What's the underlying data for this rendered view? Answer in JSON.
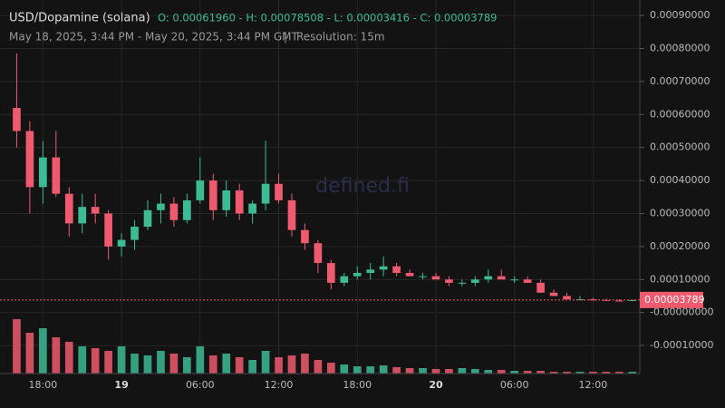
{
  "chart_data": {
    "type": "candlestick",
    "title": "USD/Dopamine (solana)",
    "ohlc_summary": "O: 0.00061960 - H: 0.00078508 - L: 0.00003416 - C: 0.00003789",
    "subtitle": "May 18, 2025, 3:44 PM - May 20, 2025, 3:44 PM GMT",
    "separator": "|",
    "resolution": "Resolution: 15m",
    "watermark": "defined.fi",
    "last_price": 3.789e-05,
    "up_color": "#3dbb94",
    "down_color": "#ef5a6f",
    "x": [
      16,
      17,
      18,
      19,
      20,
      21,
      22,
      23,
      24,
      25,
      26,
      27,
      28,
      29,
      30,
      31,
      32,
      33,
      34,
      35,
      36,
      37,
      38,
      39,
      40,
      41,
      42,
      43,
      44,
      45,
      46,
      47,
      48,
      49,
      50,
      51,
      52,
      53,
      54,
      55,
      56,
      57,
      58,
      59,
      60,
      61,
      62,
      63
    ],
    "open": [
      0.00062,
      0.00055,
      0.00038,
      0.00047,
      0.00036,
      0.00027,
      0.00032,
      0.0003,
      0.0002,
      0.00022,
      0.00026,
      0.00031,
      0.00033,
      0.00028,
      0.00034,
      0.0004,
      0.00031,
      0.00037,
      0.0003,
      0.00033,
      0.00039,
      0.00034,
      0.00025,
      0.00021,
      0.00015,
      9e-05,
      0.00011,
      0.00012,
      0.00013,
      0.00014,
      0.00012,
      0.00011,
      0.00011,
      0.0001,
      9e-05,
      9e-05,
      0.0001,
      0.00011,
      0.0001,
      0.0001,
      9e-05,
      6e-05,
      5e-05,
      4e-05,
      4e-05,
      3.8e-05,
      3.6e-05,
      3.5e-05
    ],
    "high": [
      0.00078508,
      0.00058,
      0.00052,
      0.00055,
      0.00038,
      0.00036,
      0.00036,
      0.00031,
      0.00024,
      0.00028,
      0.00034,
      0.00036,
      0.00035,
      0.00036,
      0.00047,
      0.00042,
      0.0004,
      0.00039,
      0.00034,
      0.00052,
      0.00042,
      0.00036,
      0.00027,
      0.00022,
      0.00016,
      0.00012,
      0.00014,
      0.00015,
      0.00017,
      0.00015,
      0.00013,
      0.00012,
      0.00012,
      0.00011,
      0.0001,
      0.00011,
      0.00013,
      0.00013,
      0.00011,
      0.00011,
      0.0001,
      7e-05,
      6e-05,
      5e-05,
      4.5e-05,
      4.2e-05,
      4e-05,
      3.8e-05
    ],
    "low": [
      0.0005,
      0.0003,
      0.00033,
      0.00035,
      0.00023,
      0.00024,
      0.00027,
      0.00016,
      0.00017,
      0.00019,
      0.00025,
      0.00027,
      0.00026,
      0.00027,
      0.00033,
      0.00028,
      0.00029,
      0.00028,
      0.00027,
      0.00031,
      0.00033,
      0.00023,
      0.00019,
      0.00012,
      7e-05,
      8e-05,
      0.0001,
      0.0001,
      0.00011,
      0.00011,
      0.00011,
      0.0001,
      0.0001,
      8e-05,
      8e-05,
      8e-05,
      9e-05,
      0.0001,
      9e-05,
      9e-05,
      6e-05,
      5e-05,
      4e-05,
      3.8e-05,
      3.6e-05,
      3.5e-05,
      3.4e-05,
      3.416e-05
    ],
    "close": [
      0.00055,
      0.00038,
      0.00047,
      0.00036,
      0.00027,
      0.00032,
      0.0003,
      0.0002,
      0.00022,
      0.00026,
      0.00031,
      0.00033,
      0.00028,
      0.00034,
      0.0004,
      0.00031,
      0.00037,
      0.0003,
      0.00033,
      0.00039,
      0.00034,
      0.00025,
      0.00021,
      0.00015,
      9e-05,
      0.00011,
      0.00012,
      0.00013,
      0.00014,
      0.00012,
      0.00011,
      0.00011,
      0.0001,
      9e-05,
      9e-05,
      0.0001,
      0.00011,
      0.0001,
      0.0001,
      9e-05,
      6e-05,
      5e-05,
      4e-05,
      4e-05,
      3.8e-05,
      3.6e-05,
      3.5e-05,
      3.789e-05
    ],
    "volume": [
      60,
      45,
      50,
      40,
      35,
      30,
      28,
      25,
      30,
      22,
      20,
      25,
      22,
      18,
      30,
      20,
      22,
      18,
      15,
      25,
      18,
      20,
      22,
      15,
      12,
      10,
      8,
      8,
      9,
      7,
      6,
      6,
      5,
      5,
      6,
      5,
      4,
      4,
      3,
      3,
      3,
      2,
      2,
      2,
      2,
      2,
      2,
      2
    ],
    "xlim": [
      15,
      63.5
    ],
    "xticks": [
      {
        "value": 18,
        "label": "18:00"
      },
      {
        "value": 24,
        "label": "19"
      },
      {
        "value": 30,
        "label": "06:00"
      },
      {
        "value": 36,
        "label": "12:00"
      },
      {
        "value": 42,
        "label": "18:00"
      },
      {
        "value": 48,
        "label": "20"
      },
      {
        "value": 54,
        "label": "06:00"
      },
      {
        "value": 60,
        "label": "12:00"
      }
    ],
    "ylim": [
      -0.000185,
      0.000947
    ],
    "yticks": [
      {
        "value": 0.0009,
        "label": "0.00090000"
      },
      {
        "value": 0.0008,
        "label": "0.00080000"
      },
      {
        "value": 0.0007,
        "label": "0.00070000"
      },
      {
        "value": 0.0006,
        "label": "0.00060000"
      },
      {
        "value": 0.0005,
        "label": "0.00050000"
      },
      {
        "value": 0.0004,
        "label": "0.00040000"
      },
      {
        "value": 0.0003,
        "label": "0.00030000"
      },
      {
        "value": 0.0002,
        "label": "0.00020000"
      },
      {
        "value": 0.0001,
        "label": "0.00010000"
      },
      {
        "value": 0,
        "label": "-0.00000000"
      },
      {
        "value": -0.0001,
        "label": "-0.00010000"
      }
    ],
    "grid": true
  }
}
